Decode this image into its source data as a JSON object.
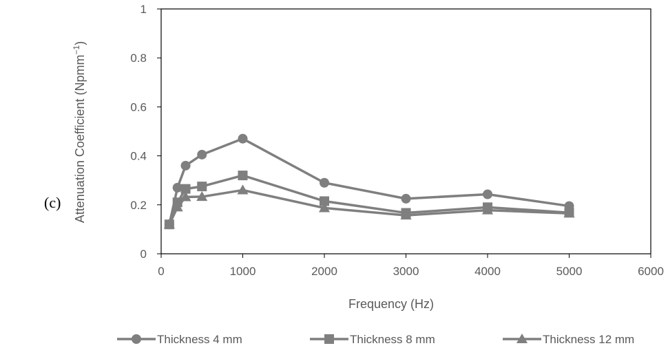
{
  "panel_label": "(c)",
  "chart_data": {
    "type": "line",
    "title": "",
    "xlabel": "Frequency (Hz)",
    "ylabel_main": "Attenuation Coefficient (Npmm",
    "ylabel_sup": "−1",
    "ylabel_close": ")",
    "xlim": [
      0,
      6000
    ],
    "ylim": [
      0,
      1
    ],
    "xticks": [
      0,
      1000,
      2000,
      3000,
      4000,
      5000,
      6000
    ],
    "yticks": [
      0,
      0.2,
      0.4,
      0.6,
      0.8,
      1
    ],
    "xtick_labels": [
      "0",
      "1000",
      "2000",
      "3000",
      "4000",
      "5000",
      "6000"
    ],
    "ytick_labels": [
      "0",
      "0.2",
      "0.4",
      "0.6",
      "0.8",
      "1"
    ],
    "grid": false,
    "legend_position": "bottom",
    "x": [
      100,
      200,
      300,
      500,
      1000,
      2000,
      3000,
      4000,
      5000
    ],
    "series": [
      {
        "name": "Thickness 4 mm",
        "marker": "circle",
        "color": "#7f7f7f",
        "values": [
          0.12,
          0.27,
          0.36,
          0.405,
          0.47,
          0.29,
          0.225,
          0.243,
          0.195
        ]
      },
      {
        "name": "Thickness 8 mm",
        "marker": "square",
        "color": "#7f7f7f",
        "values": [
          0.12,
          0.21,
          0.265,
          0.275,
          0.32,
          0.215,
          0.167,
          0.19,
          0.168
        ]
      },
      {
        "name": "Thickness 12 mm",
        "marker": "triangle",
        "color": "#7f7f7f",
        "values": [
          0.12,
          0.19,
          0.232,
          0.233,
          0.26,
          0.187,
          0.157,
          0.178,
          0.165
        ]
      }
    ]
  }
}
